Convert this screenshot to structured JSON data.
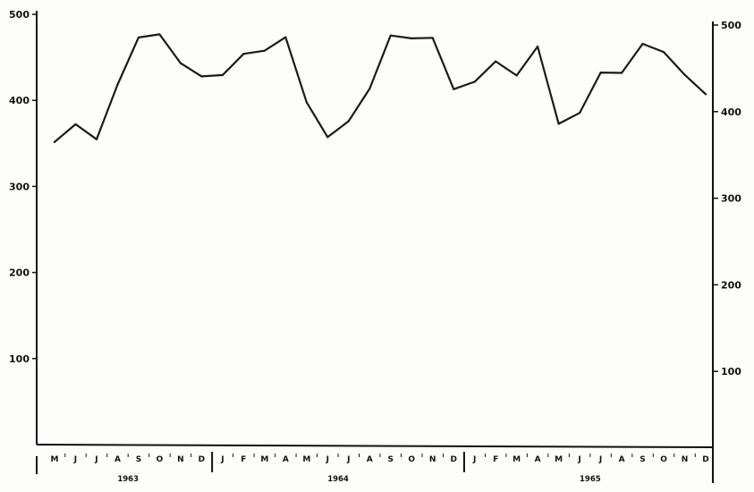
{
  "chart_data": {
    "type": "line",
    "title": "",
    "xlabel": "",
    "ylabel": "",
    "ylim": [
      0,
      500
    ],
    "y_ticks_left": [
      100,
      200,
      300,
      400,
      500
    ],
    "y_ticks_right": [
      100,
      200,
      300,
      400,
      500
    ],
    "grid": false,
    "legend": "none",
    "line_color": "#1a1a1a",
    "months": [
      "M",
      "J",
      "J",
      "A",
      "S",
      "O",
      "N",
      "D",
      "J",
      "F",
      "M",
      "A",
      "M",
      "J",
      "J",
      "A",
      "S",
      "O",
      "N",
      "D",
      "J",
      "F",
      "M",
      "A",
      "M",
      "J",
      "J",
      "A",
      "S",
      "O",
      "N",
      "D"
    ],
    "year_labels": [
      {
        "label": "1963",
        "start_index": 0,
        "end_index": 7
      },
      {
        "label": "1964",
        "start_index": 8,
        "end_index": 19
      },
      {
        "label": "1965",
        "start_index": 20,
        "end_index": 31
      }
    ],
    "series": [
      {
        "values": [
          352,
          373,
          356,
          420,
          475,
          479,
          446,
          431,
          433,
          458,
          462,
          478,
          403,
          363,
          382,
          420,
          482,
          479,
          480,
          421,
          430,
          454,
          438,
          472,
          383,
          396,
          443,
          443,
          477,
          468,
          442,
          420
        ]
      }
    ]
  }
}
